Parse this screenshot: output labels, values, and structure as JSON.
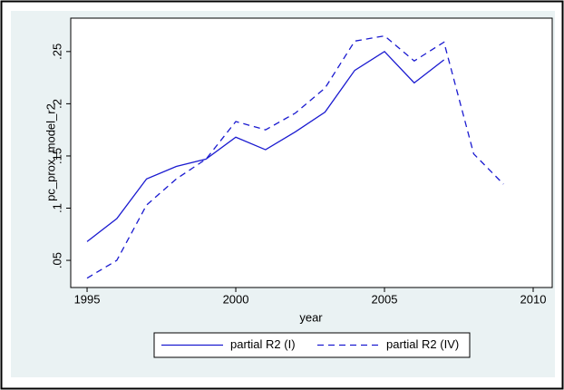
{
  "chart_data": {
    "type": "line",
    "x": [
      1995,
      1996,
      1997,
      1998,
      1999,
      2000,
      2001,
      2002,
      2003,
      2004,
      2005,
      2006,
      2007,
      2008,
      2009
    ],
    "series": [
      {
        "name": "partial R2 (I)",
        "color": "#1a1ad0",
        "dash": false,
        "values": [
          0.068,
          0.09,
          0.128,
          0.14,
          0.147,
          0.168,
          0.156,
          0.173,
          0.192,
          0.232,
          0.25,
          0.22,
          0.242,
          null,
          null
        ]
      },
      {
        "name": "partial R2 (IV)",
        "color": "#1a1ad0",
        "dash": true,
        "values": [
          0.033,
          0.05,
          0.103,
          0.128,
          0.147,
          0.183,
          0.175,
          0.191,
          0.215,
          0.26,
          0.265,
          0.241,
          0.259,
          0.152,
          0.123
        ]
      }
    ],
    "xlabel": "year",
    "ylabel": "pc_prox_model_r2",
    "xlim": [
      1994.45,
      2010.64
    ],
    "xticks": [
      1995,
      2000,
      2005,
      2010
    ],
    "ylim": [
      0.024,
      0.282
    ],
    "yticks": [
      {
        "value": 0.05,
        "label": ".05"
      },
      {
        "value": 0.1,
        "label": ".1"
      },
      {
        "value": 0.15,
        "label": ".15"
      },
      {
        "value": 0.2,
        "label": ".2"
      },
      {
        "value": 0.25,
        "label": ".25"
      }
    ],
    "grid": false,
    "legend": "bottom"
  }
}
